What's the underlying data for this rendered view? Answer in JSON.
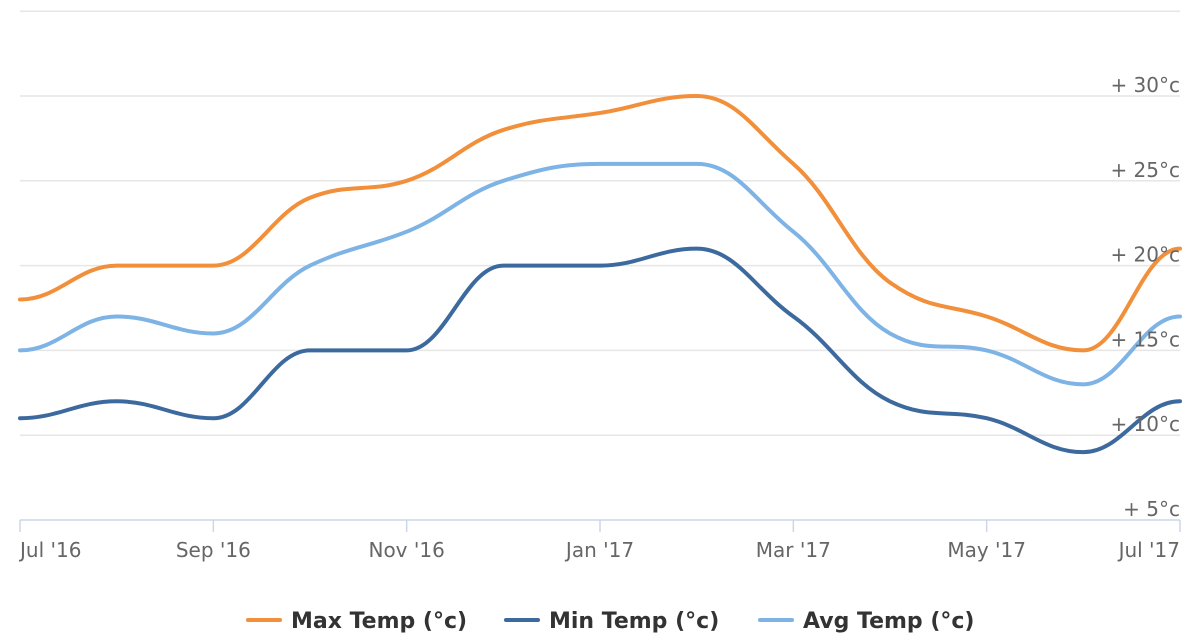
{
  "chart_data": {
    "type": "line",
    "x": [
      "2016-07",
      "2016-08",
      "2016-09",
      "2016-10",
      "2016-11",
      "2016-12",
      "2017-01",
      "2017-02",
      "2017-03",
      "2017-04",
      "2017-05",
      "2017-06",
      "2017-07"
    ],
    "x_ticks": [
      "Jul '16",
      "Sep '16",
      "Nov '16",
      "Jan '17",
      "Mar '17",
      "May '17",
      "Jul '17"
    ],
    "y_ticks": [
      "+ 5°c",
      "+ 10°c",
      "+ 15°c",
      "+ 20°c",
      "+ 25°c",
      "+ 30°c"
    ],
    "y_tick_values": [
      5,
      10,
      15,
      20,
      25,
      30
    ],
    "ylim": [
      0,
      35
    ],
    "grid": true,
    "y_axis_side": "right",
    "legend_position": "bottom-center",
    "series": [
      {
        "name": "Max Temp (°c)",
        "color": "#f28f3b",
        "values": [
          18,
          20,
          20,
          24,
          25,
          28,
          29,
          30,
          26,
          19,
          17,
          15,
          21
        ]
      },
      {
        "name": "Min Temp (°c)",
        "color": "#3d6a9e",
        "values": [
          11,
          12,
          11,
          15,
          15,
          20,
          20,
          21,
          17,
          12,
          11,
          9,
          12
        ]
      },
      {
        "name": "Avg Temp (°c)",
        "color": "#7eb3e6",
        "values": [
          15,
          17,
          16,
          20,
          22,
          25,
          26,
          26,
          22,
          16,
          15,
          13,
          17
        ]
      }
    ]
  }
}
